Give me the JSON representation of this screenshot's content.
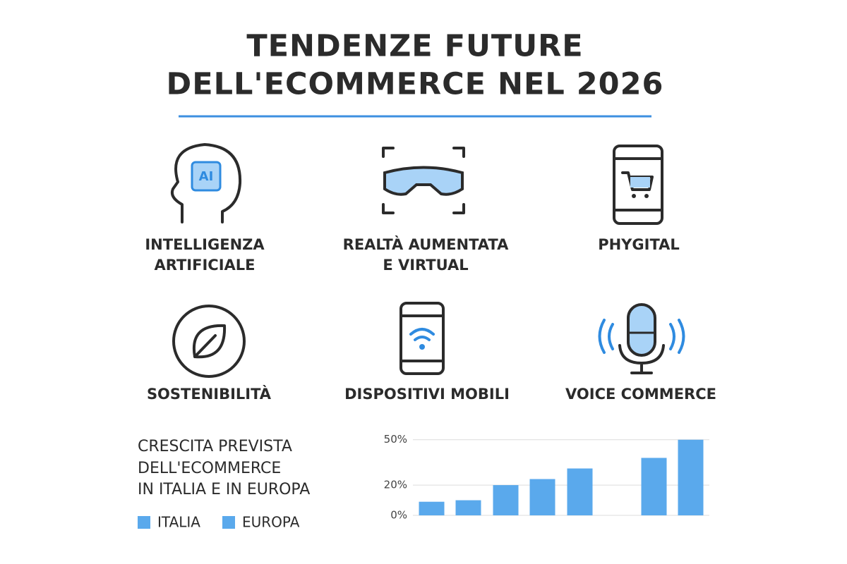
{
  "header": {
    "title_lines": [
      "TENDENZE FUTURE",
      "DELL'ECOMMERCE NEL 2026"
    ]
  },
  "trends": [
    {
      "lines": [
        "INTELLIGENZA",
        "ARTIFICIALE"
      ],
      "icon_text": "AI"
    },
    {
      "lines": [
        "REALTÀ AUMENTATA",
        "E VIRTUAL"
      ]
    },
    {
      "lines": [
        "PHYGITAL"
      ]
    },
    {
      "lines": [
        "SOSTENIBILITÀ"
      ]
    },
    {
      "lines": [
        "DISPOSITIVI MOBILI"
      ]
    },
    {
      "lines": [
        "VOICE COMMERCE"
      ]
    }
  ],
  "chart_data": {
    "type": "bar",
    "title_lines": [
      "CRESCITA PREVISTA",
      "DELL'ECOMMERCE",
      "IN ITALIA E IN EUROPA"
    ],
    "categories": [
      null,
      null,
      null,
      null
    ],
    "series": [
      {
        "name": "ITALIA",
        "color": "#5aa9ec",
        "values": [
          9,
          20,
          31,
          38
        ]
      },
      {
        "name": "EUROPA",
        "color": "#5aa9ec",
        "values": [
          10,
          24,
          null,
          50
        ]
      }
    ],
    "ylim": [
      0,
      55
    ],
    "yticks": [
      {
        "value": 0,
        "label": "0%"
      },
      {
        "value": 20,
        "label": "20%"
      },
      {
        "value": 50,
        "label": "50%"
      }
    ],
    "grid": true
  }
}
